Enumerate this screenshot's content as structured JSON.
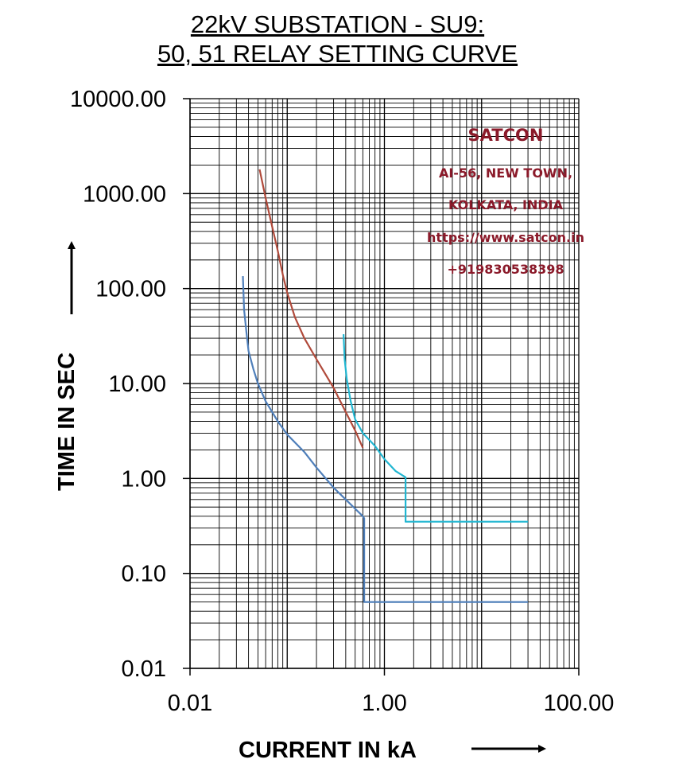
{
  "title_lines": [
    "22kV SUBSTATION - SU9:",
    "50, 51 RELAY SETTING CURVE"
  ],
  "chart_data": {
    "type": "line",
    "xscale": "log",
    "yscale": "log",
    "xlim": [
      0.01,
      100
    ],
    "ylim": [
      0.01,
      10000
    ],
    "grid": true,
    "xlabel": "CURRENT IN  kA",
    "ylabel": "TIME IN SEC",
    "x_ticks": [
      {
        "value": 0.01,
        "label": "0.01"
      },
      {
        "value": 1,
        "label": "1.00"
      },
      {
        "value": 100,
        "label": "100.00"
      }
    ],
    "y_ticks": [
      {
        "value": 10000,
        "label": "10000.00"
      },
      {
        "value": 1000,
        "label": "1000.00"
      },
      {
        "value": 100,
        "label": "100.00"
      },
      {
        "value": 10,
        "label": "10.00"
      },
      {
        "value": 1,
        "label": "1.00"
      },
      {
        "value": 0.1,
        "label": "0.10"
      },
      {
        "value": 0.01,
        "label": "0.01"
      }
    ],
    "series": [
      {
        "color": "#4f7fba",
        "points": [
          [
            0.035,
            135
          ],
          [
            0.036,
            60
          ],
          [
            0.038,
            35
          ],
          [
            0.04,
            22
          ],
          [
            0.045,
            14
          ],
          [
            0.05,
            10
          ],
          [
            0.06,
            6.5
          ],
          [
            0.08,
            4
          ],
          [
            0.1,
            2.9
          ],
          [
            0.15,
            1.9
          ],
          [
            0.2,
            1.3
          ],
          [
            0.3,
            0.8
          ],
          [
            0.4,
            0.6
          ],
          [
            0.5,
            0.48
          ],
          [
            0.6,
            0.4
          ],
          [
            0.62,
            0.38
          ],
          [
            0.62,
            0.05
          ],
          [
            30,
            0.05
          ]
        ]
      },
      {
        "color": "#b04a3b",
        "points": [
          [
            0.052,
            1800
          ],
          [
            0.06,
            900
          ],
          [
            0.07,
            450
          ],
          [
            0.08,
            250
          ],
          [
            0.09,
            140
          ],
          [
            0.1,
            90
          ],
          [
            0.12,
            50
          ],
          [
            0.15,
            30
          ],
          [
            0.2,
            18
          ],
          [
            0.3,
            9
          ],
          [
            0.4,
            5
          ],
          [
            0.5,
            3.2
          ],
          [
            0.6,
            2.1
          ]
        ]
      },
      {
        "color": "#21b6d1",
        "points": [
          [
            0.38,
            33
          ],
          [
            0.39,
            18
          ],
          [
            0.41,
            11
          ],
          [
            0.45,
            6.5
          ],
          [
            0.5,
            4.2
          ],
          [
            0.6,
            3
          ],
          [
            0.8,
            2.2
          ],
          [
            1.0,
            1.6
          ],
          [
            1.3,
            1.2
          ],
          [
            1.6,
            1.05
          ],
          [
            1.65,
            1.03
          ],
          [
            1.65,
            0.35
          ],
          [
            30,
            0.35
          ]
        ]
      }
    ],
    "annotations": [
      "SATCON",
      "AI-56, NEW TOWN,",
      "KOLKATA, INDIA",
      "https://www.satcon.in",
      "+919830538398"
    ]
  }
}
